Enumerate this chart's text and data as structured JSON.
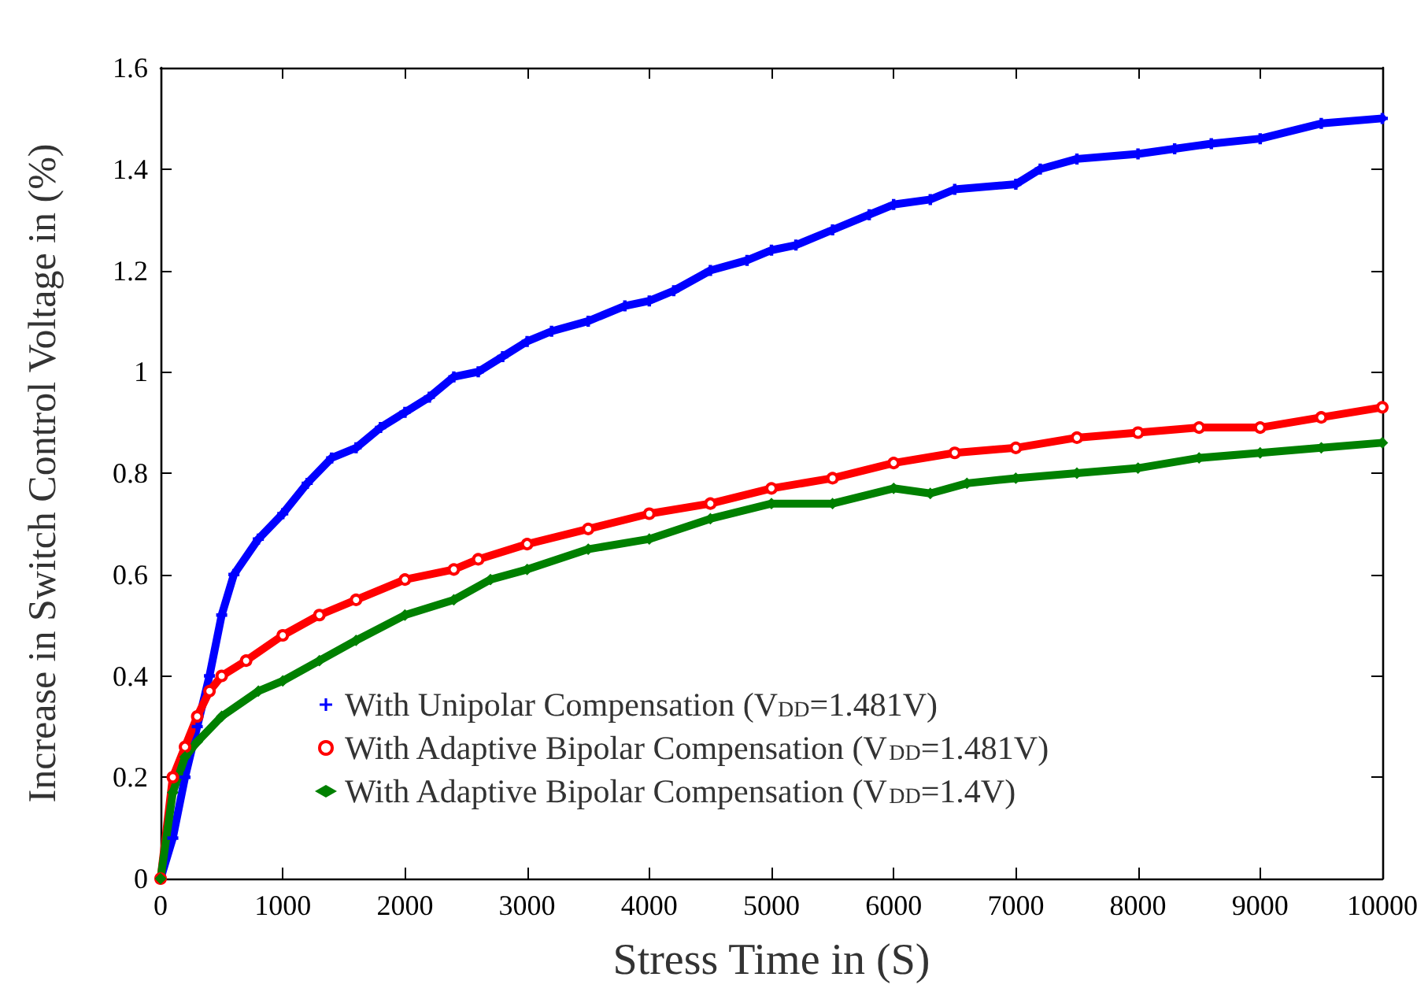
{
  "chart_data": {
    "type": "line",
    "xlabel": "Stress Time in (S)",
    "ylabel": "Increase in Switch Control Voltage in (%)",
    "xlim": [
      0,
      10000
    ],
    "xticks": [
      0,
      1000,
      2000,
      3000,
      4000,
      5000,
      6000,
      7000,
      8000,
      9000,
      10000
    ],
    "ylim": [
      0,
      1.6
    ],
    "yticks": [
      0,
      0.2,
      0.4,
      0.6,
      0.8,
      1,
      1.2,
      1.4,
      1.6
    ],
    "grid": false,
    "legend": "bottom",
    "line_style": "solid",
    "series": [
      {
        "name": "With Unipolar Compensation (V$_{DD}$=1.481V)",
        "color": "#0000ff",
        "marker": "cross",
        "x": [
          0,
          100,
          200,
          300,
          400,
          500,
          600,
          800,
          1000,
          1200,
          1400,
          1600,
          1800,
          2000,
          2200,
          2400,
          2600,
          2800,
          3000,
          3200,
          3500,
          3800,
          4000,
          4200,
          4500,
          4800,
          5000,
          5200,
          5500,
          5800,
          6000,
          6300,
          6500,
          7000,
          7200,
          7500,
          8000,
          8300,
          8600,
          9000,
          9500,
          10000
        ],
        "values": [
          0,
          0.08,
          0.2,
          0.3,
          0.4,
          0.52,
          0.6,
          0.67,
          0.72,
          0.78,
          0.83,
          0.85,
          0.89,
          0.92,
          0.95,
          0.99,
          1.0,
          1.03,
          1.06,
          1.08,
          1.1,
          1.13,
          1.14,
          1.16,
          1.2,
          1.22,
          1.24,
          1.25,
          1.28,
          1.31,
          1.33,
          1.34,
          1.36,
          1.37,
          1.4,
          1.42,
          1.43,
          1.44,
          1.45,
          1.46,
          1.49,
          1.5
        ]
      },
      {
        "name": "With Adaptive Bipolar Compensation (V$_{DD}$=1.481V)",
        "color": "#ff0000",
        "marker": "circle",
        "x": [
          0,
          100,
          200,
          300,
          400,
          500,
          700,
          1000,
          1300,
          1600,
          2000,
          2400,
          2600,
          3000,
          3500,
          4000,
          4500,
          5000,
          5500,
          6000,
          6500,
          7000,
          7500,
          8000,
          8500,
          9000,
          9500,
          10000
        ],
        "values": [
          0,
          0.2,
          0.26,
          0.32,
          0.37,
          0.4,
          0.43,
          0.48,
          0.52,
          0.55,
          0.59,
          0.61,
          0.63,
          0.66,
          0.69,
          0.72,
          0.74,
          0.77,
          0.79,
          0.82,
          0.84,
          0.85,
          0.87,
          0.88,
          0.89,
          0.89,
          0.91,
          0.93
        ]
      },
      {
        "name": "With Adaptive Bipolar Compensation (V$_{DD}$=1.4V)",
        "color": "#008000",
        "marker": "diamond",
        "x": [
          0,
          100,
          200,
          300,
          500,
          800,
          1000,
          1300,
          1600,
          2000,
          2400,
          2700,
          3000,
          3500,
          4000,
          4500,
          5000,
          5500,
          6000,
          6300,
          6600,
          7000,
          7500,
          8000,
          8500,
          9000,
          9500,
          10000
        ],
        "values": [
          0,
          0.17,
          0.24,
          0.27,
          0.32,
          0.37,
          0.39,
          0.43,
          0.47,
          0.52,
          0.55,
          0.59,
          0.61,
          0.65,
          0.67,
          0.71,
          0.74,
          0.74,
          0.77,
          0.76,
          0.78,
          0.79,
          0.8,
          0.81,
          0.83,
          0.84,
          0.85,
          0.86
        ]
      }
    ]
  }
}
